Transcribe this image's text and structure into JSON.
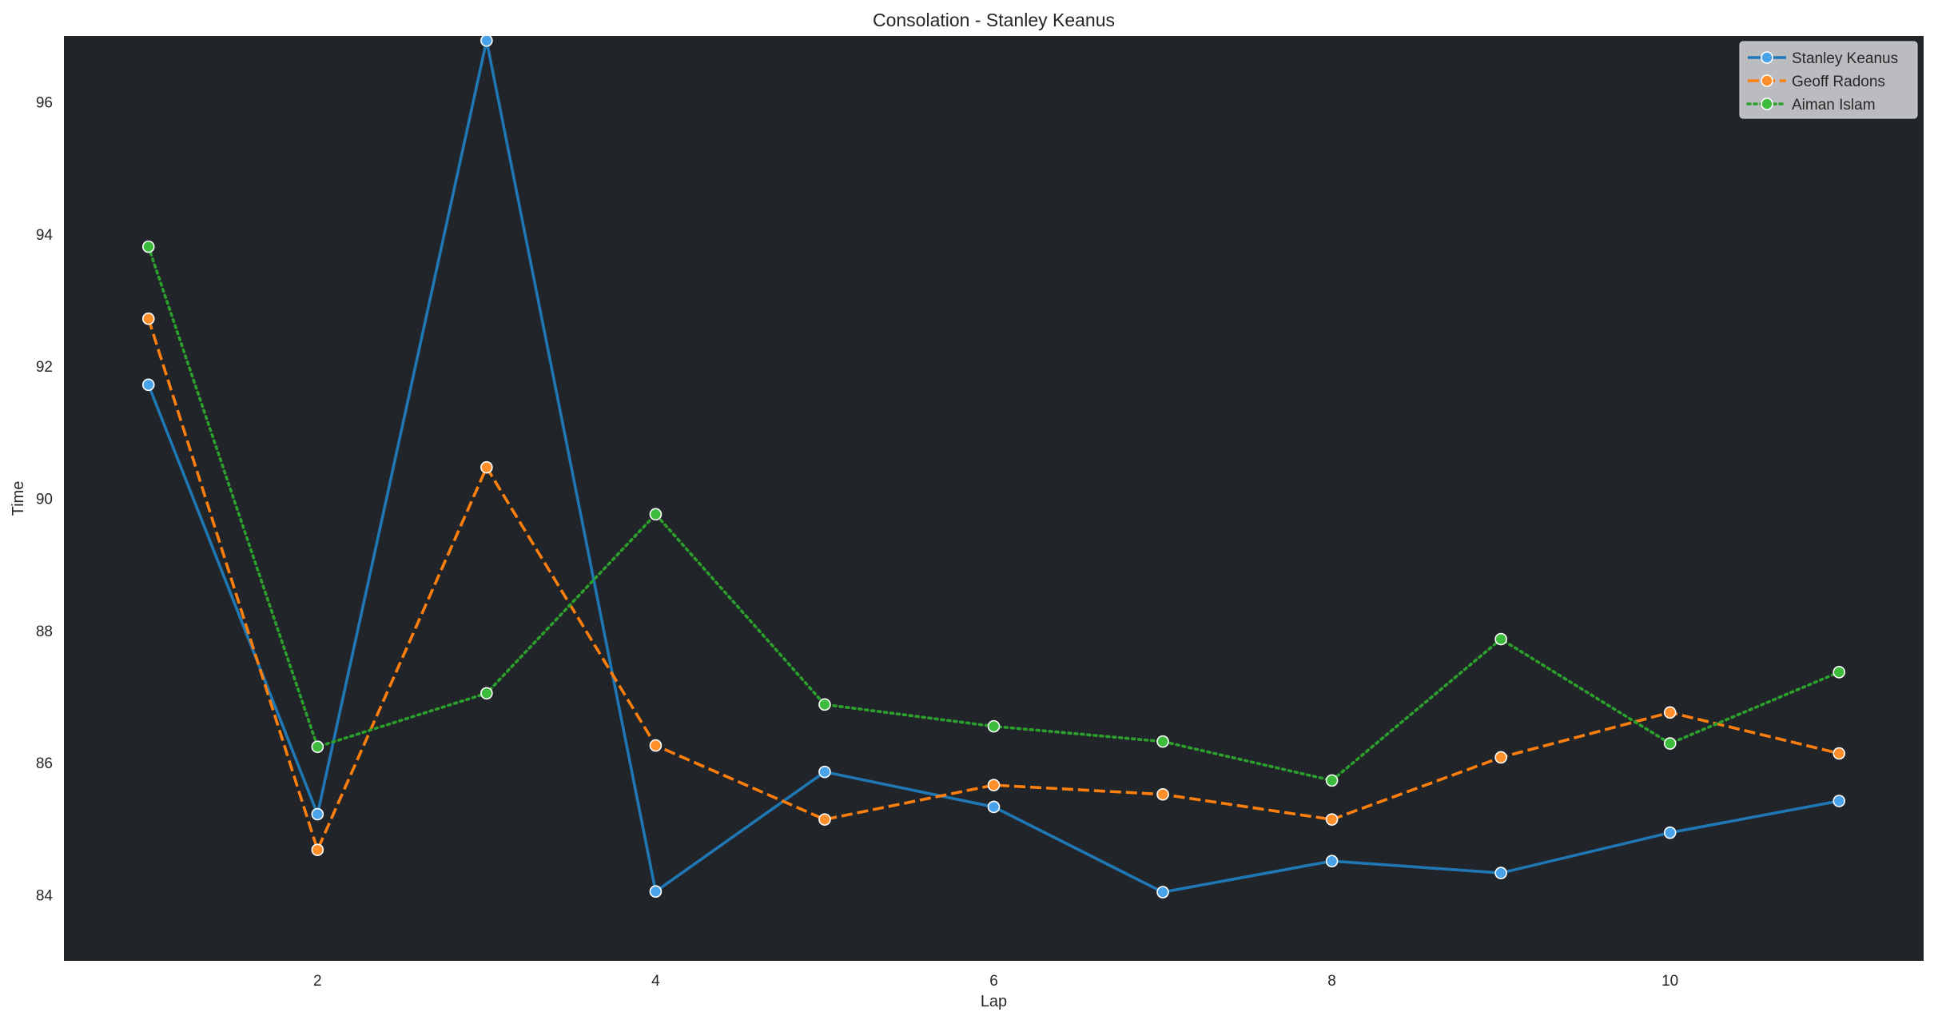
{
  "chart_data": {
    "type": "line",
    "title": "Consolation - Stanley Keanus",
    "xlabel": "Lap",
    "ylabel": "Time",
    "xlim": [
      0.5,
      11.5
    ],
    "ylim": [
      83.0,
      97.0
    ],
    "xticks": [
      2,
      4,
      6,
      8,
      10
    ],
    "yticks": [
      84,
      86,
      88,
      90,
      92,
      94,
      96
    ],
    "x": [
      1,
      2,
      3,
      4,
      5,
      6,
      7,
      8,
      9,
      10,
      11
    ],
    "grid": false,
    "legend_position": "top-right",
    "background": "#212429",
    "series": [
      {
        "name": "Stanley Keanus",
        "color": "#1f77b4",
        "marker_fill": "#4aa3e8",
        "linestyle": "solid",
        "values": [
          91.72,
          85.22,
          96.93,
          84.05,
          85.86,
          85.33,
          84.04,
          84.51,
          84.33,
          84.94,
          85.42
        ]
      },
      {
        "name": "Geoff Radons",
        "color": "#ff7f0e",
        "marker_fill": "#ff8f2a",
        "linestyle": "dashed",
        "values": [
          92.72,
          84.68,
          90.47,
          86.26,
          85.14,
          85.66,
          85.52,
          85.14,
          86.08,
          86.76,
          86.14
        ]
      },
      {
        "name": "Aiman Islam",
        "color": "#2ca02c",
        "marker_fill": "#3dbb3d",
        "linestyle": "dotted",
        "values": [
          93.81,
          86.24,
          87.05,
          89.76,
          86.88,
          86.55,
          86.32,
          85.73,
          87.87,
          86.29,
          87.37
        ]
      }
    ]
  }
}
